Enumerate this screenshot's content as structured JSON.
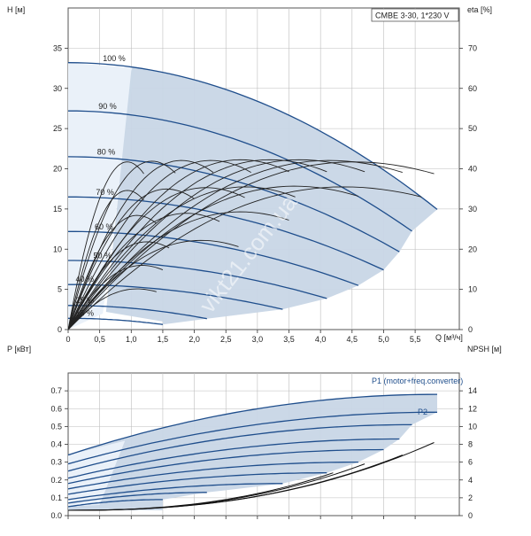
{
  "title_box": "CMBE 3-30, 1*230 V",
  "watermark": "vikt21.com.ua",
  "colors": {
    "area": "#c8d6e6",
    "area_light": "#eaf1f9",
    "curve": "#1f4e8c",
    "eta": "#222222",
    "npsh": "#111111"
  },
  "chart_data": [
    {
      "type": "line",
      "name": "Head / efficiency",
      "xlabel": "Q [м³/ч]",
      "ylabel_left": "H [м]",
      "ylabel_right": "eta [%]",
      "xlim": [
        0,
        6.2
      ],
      "ylim": [
        0,
        40
      ],
      "y2lim": [
        0,
        80
      ],
      "xticks": [
        "0",
        "0,5",
        "1,0",
        "1,5",
        "2,0",
        "2,5",
        "3,0",
        "3,5",
        "4,0",
        "4,5",
        "5,0",
        "5,5"
      ],
      "yticks": [
        "0",
        "5",
        "10",
        "15",
        "20",
        "25",
        "30",
        "35"
      ],
      "y2ticks": [
        "0",
        "10",
        "20",
        "30",
        "40",
        "50",
        "60",
        "70"
      ],
      "grid": true,
      "head_curves": [
        {
          "label": "100 %",
          "h0": 33.2,
          "qmax": 5.85
        },
        {
          "label": "90 %",
          "h0": 27.2,
          "qmax": 5.45
        },
        {
          "label": "80 %",
          "h0": 21.5,
          "qmax": 5.25
        },
        {
          "label": "70 %",
          "h0": 16.5,
          "qmax": 5.0
        },
        {
          "label": "60 %",
          "h0": 12.2,
          "qmax": 4.6
        },
        {
          "label": "50 %",
          "h0": 8.6,
          "qmax": 4.1
        },
        {
          "label": "40 %",
          "h0": 5.6,
          "qmax": 3.4
        },
        {
          "label": "25 %",
          "h0": 3.0,
          "qmax": 2.2
        },
        {
          "label": "15 %",
          "h0": 1.4,
          "qmax": 1.5
        }
      ],
      "eta_peaks": [
        {
          "qmax": 1.2,
          "h": 23.5
        },
        {
          "qmax": 1.7,
          "h": 23.6
        },
        {
          "qmax": 2.3,
          "h": 23.7
        },
        {
          "qmax": 2.9,
          "h": 23.7
        },
        {
          "qmax": 3.5,
          "h": 23.8
        },
        {
          "qmax": 4.1,
          "h": 23.8
        },
        {
          "qmax": 4.7,
          "h": 23.8
        },
        {
          "qmax": 5.3,
          "h": 23.7
        },
        {
          "qmax": 5.8,
          "h": 23.5
        },
        {
          "qmax": 1.2,
          "h": 19.5
        },
        {
          "qmax": 2.0,
          "h": 19.7
        },
        {
          "qmax": 2.8,
          "h": 19.9
        },
        {
          "qmax": 3.6,
          "h": 20.0
        },
        {
          "qmax": 4.6,
          "h": 20.1
        },
        {
          "qmax": 5.6,
          "h": 20.0
        },
        {
          "qmax": 1.4,
          "h": 16.0
        },
        {
          "qmax": 2.4,
          "h": 16.3
        },
        {
          "qmax": 3.5,
          "h": 16.5
        },
        {
          "qmax": 1.6,
          "h": 12.3
        },
        {
          "qmax": 2.7,
          "h": 12.5
        },
        {
          "qmax": 1.5,
          "h": 9.0
        },
        {
          "qmax": 1.4,
          "h": 5.7
        }
      ]
    },
    {
      "type": "line",
      "name": "Power / NPSH",
      "xlabel": "",
      "ylabel_left": "P [кВт]",
      "ylabel_right": "NPSH [м]",
      "xlim": [
        0,
        6.2
      ],
      "ylim": [
        0,
        0.8
      ],
      "y2lim": [
        0,
        16
      ],
      "yticks": [
        "0.0",
        "0.1",
        "0.2",
        "0.3",
        "0.4",
        "0.5",
        "0.6",
        "0.7"
      ],
      "y2ticks": [
        "0",
        "2",
        "4",
        "6",
        "8",
        "10",
        "12",
        "14"
      ],
      "grid": true,
      "series_labels": [
        "P1 (motor+freq.converter)",
        "P2"
      ],
      "power_curves": [
        {
          "p0": 0.34,
          "p1": 0.68,
          "qmax": 5.85
        },
        {
          "p0": 0.29,
          "p1": 0.58,
          "qmax": 5.85
        },
        {
          "p0": 0.25,
          "p1": 0.51,
          "qmax": 5.45
        },
        {
          "p0": 0.21,
          "p1": 0.43,
          "qmax": 5.25
        },
        {
          "p0": 0.18,
          "p1": 0.37,
          "qmax": 5.0
        },
        {
          "p0": 0.15,
          "p1": 0.3,
          "qmax": 4.6
        },
        {
          "p0": 0.12,
          "p1": 0.24,
          "qmax": 4.1
        },
        {
          "p0": 0.09,
          "p1": 0.18,
          "qmax": 3.4
        },
        {
          "p0": 0.07,
          "p1": 0.13,
          "qmax": 2.2
        },
        {
          "p0": 0.05,
          "p1": 0.09,
          "qmax": 1.5
        }
      ],
      "npsh_curves": [
        {
          "qmax": 5.8,
          "n": 8.2
        },
        {
          "qmax": 5.3,
          "n": 6.8
        },
        {
          "qmax": 4.7,
          "n": 5.8
        },
        {
          "qmax": 4.2,
          "n": 4.8
        }
      ]
    }
  ]
}
